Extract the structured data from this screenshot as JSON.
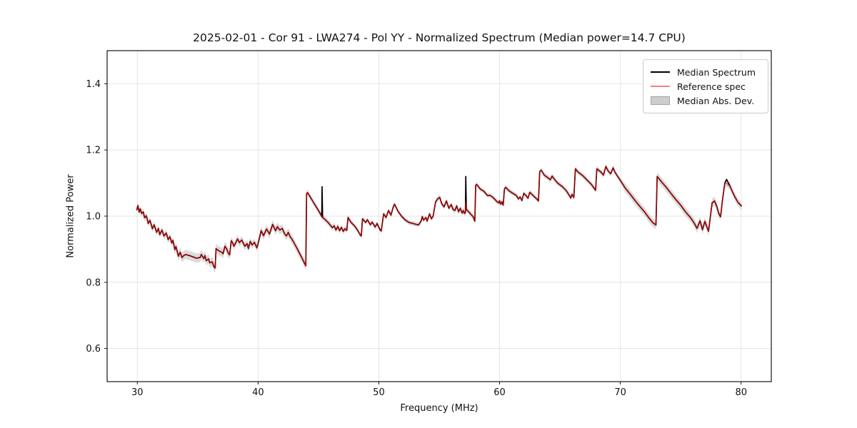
{
  "chart_data": {
    "type": "line",
    "title": "2025-02-01 - Cor 91 - LWA274 - Pol YY - Normalized Spectrum (Median power=14.7 CPU)",
    "xlabel": "Frequency (MHz)",
    "ylabel": "Normalized Power",
    "xlim": [
      27.5,
      82.5
    ],
    "ylim": [
      0.5,
      1.5
    ],
    "xticks": [
      30,
      40,
      50,
      60,
      70,
      80
    ],
    "yticks": [
      0.6,
      0.8,
      1.0,
      1.2,
      1.4
    ],
    "grid": true,
    "legend_position": "upper right",
    "colors": {
      "median_line": "#000000",
      "reference_line": "#ff0000",
      "reference_opacity": 0.62,
      "band_fill": "#bdbdbd",
      "band_opacity": 0.55,
      "grid": "#e4e4e4",
      "spine": "#000000"
    },
    "legend": [
      {
        "label": "Median Spectrum",
        "type": "line",
        "color": "#000000"
      },
      {
        "label": "Reference spec",
        "type": "line",
        "color": "#f37f7f"
      },
      {
        "label": "Median Abs. Dev.",
        "type": "patch",
        "color": "#cdcdcd"
      }
    ],
    "columns": [
      "freq_mhz",
      "median_power",
      "reference_power_if_different"
    ],
    "points": [
      [
        29.95,
        1.018
      ],
      [
        30.05,
        1.032
      ],
      [
        30.15,
        1.012
      ],
      [
        30.25,
        1.022
      ],
      [
        30.35,
        1.008
      ],
      [
        30.5,
        1.013
      ],
      [
        30.6,
        0.995
      ],
      [
        30.75,
        1.001
      ],
      [
        30.9,
        0.978
      ],
      [
        31.05,
        0.987
      ],
      [
        31.25,
        0.962
      ],
      [
        31.4,
        0.974
      ],
      [
        31.6,
        0.951
      ],
      [
        31.75,
        0.963
      ],
      [
        31.85,
        0.944
      ],
      [
        32.05,
        0.958
      ],
      [
        32.2,
        0.94
      ],
      [
        32.4,
        0.949
      ],
      [
        32.55,
        0.929
      ],
      [
        32.7,
        0.938
      ],
      [
        32.85,
        0.919
      ],
      [
        32.95,
        0.927
      ],
      [
        33.1,
        0.899
      ],
      [
        33.2,
        0.908
      ],
      [
        33.4,
        0.879
      ],
      [
        33.55,
        0.891
      ],
      [
        33.7,
        0.875
      ],
      [
        33.85,
        0.881
      ],
      [
        34.0,
        0.884
      ],
      [
        34.3,
        0.881
      ],
      [
        34.6,
        0.877
      ],
      [
        34.9,
        0.873
      ],
      [
        35.2,
        0.875
      ],
      [
        35.3,
        0.884
      ],
      [
        35.5,
        0.872
      ],
      [
        35.6,
        0.881
      ],
      [
        35.7,
        0.865
      ],
      [
        35.9,
        0.871
      ],
      [
        36.0,
        0.859
      ],
      [
        36.2,
        0.862
      ],
      [
        36.35,
        0.847
      ],
      [
        36.45,
        0.843
      ],
      [
        36.52,
        0.902
      ],
      [
        36.65,
        0.898
      ],
      [
        36.8,
        0.894
      ],
      [
        37.0,
        0.891
      ],
      [
        37.1,
        0.886
      ],
      [
        37.25,
        0.909
      ],
      [
        37.4,
        0.901
      ],
      [
        37.55,
        0.887
      ],
      [
        37.65,
        0.883
      ],
      [
        37.78,
        0.926
      ],
      [
        37.9,
        0.919
      ],
      [
        38.0,
        0.909
      ],
      [
        38.1,
        0.916
      ],
      [
        38.3,
        0.931
      ],
      [
        38.45,
        0.92
      ],
      [
        38.65,
        0.928
      ],
      [
        38.9,
        0.909
      ],
      [
        39.1,
        0.917
      ],
      [
        39.2,
        0.902
      ],
      [
        39.35,
        0.924
      ],
      [
        39.5,
        0.913
      ],
      [
        39.7,
        0.921
      ],
      [
        39.9,
        0.904
      ],
      [
        40.1,
        0.932
      ],
      [
        40.25,
        0.956
      ],
      [
        40.45,
        0.941
      ],
      [
        40.7,
        0.961
      ],
      [
        40.95,
        0.946
      ],
      [
        41.2,
        0.975
      ],
      [
        41.45,
        0.956
      ],
      [
        41.6,
        0.968
      ],
      [
        41.8,
        0.958
      ],
      [
        42.0,
        0.963
      ],
      [
        42.2,
        0.946
      ],
      [
        42.35,
        0.94
      ],
      [
        42.5,
        0.951
      ],
      [
        42.65,
        0.938
      ],
      [
        42.8,
        0.931
      ],
      [
        43.2,
        0.904
      ],
      [
        43.6,
        0.876
      ],
      [
        43.95,
        0.85
      ],
      [
        44.02,
        1.068
      ],
      [
        44.1,
        1.071
      ],
      [
        44.4,
        1.053
      ],
      [
        44.7,
        1.035
      ],
      [
        45.0,
        1.017
      ],
      [
        45.2,
        1.004
      ],
      [
        45.27,
        0.999
      ],
      [
        45.3,
        1.089,
        0.998
      ],
      [
        45.34,
        0.996
      ],
      [
        45.45,
        0.993
      ],
      [
        45.6,
        0.988
      ],
      [
        45.8,
        0.981
      ],
      [
        46.0,
        0.972
      ],
      [
        46.15,
        0.965
      ],
      [
        46.3,
        0.971
      ],
      [
        46.45,
        0.958
      ],
      [
        46.6,
        0.969
      ],
      [
        46.75,
        0.956
      ],
      [
        46.9,
        0.966
      ],
      [
        47.05,
        0.954
      ],
      [
        47.2,
        0.962
      ],
      [
        47.35,
        0.957
      ],
      [
        47.45,
        0.996
      ],
      [
        47.7,
        0.981
      ],
      [
        48.0,
        0.97
      ],
      [
        48.2,
        0.96
      ],
      [
        48.45,
        0.944
      ],
      [
        48.55,
        0.94
      ],
      [
        48.65,
        0.992
      ],
      [
        48.9,
        0.981
      ],
      [
        49.05,
        0.989
      ],
      [
        49.3,
        0.974
      ],
      [
        49.45,
        0.982
      ],
      [
        49.7,
        0.967
      ],
      [
        49.85,
        0.978
      ],
      [
        50.1,
        0.959
      ],
      [
        50.2,
        0.955
      ],
      [
        50.4,
        1.007
      ],
      [
        50.6,
        0.996
      ],
      [
        50.8,
        1.017
      ],
      [
        51.0,
        1.003
      ],
      [
        51.2,
        1.028
      ],
      [
        51.3,
        1.036
      ],
      [
        51.6,
        1.014
      ],
      [
        51.9,
        0.999
      ],
      [
        52.2,
        0.988
      ],
      [
        52.5,
        0.981
      ],
      [
        52.8,
        0.978
      ],
      [
        53.1,
        0.975
      ],
      [
        53.3,
        0.974
      ],
      [
        53.5,
        0.985
      ],
      [
        53.6,
        0.999
      ],
      [
        53.7,
        0.988
      ],
      [
        53.9,
        0.996
      ],
      [
        54.0,
        0.985
      ],
      [
        54.2,
        1.007
      ],
      [
        54.35,
        0.992
      ],
      [
        54.5,
        1.0
      ],
      [
        54.7,
        1.043
      ],
      [
        54.9,
        1.053
      ],
      [
        55.05,
        1.057
      ],
      [
        55.2,
        1.038
      ],
      [
        55.4,
        1.028
      ],
      [
        55.6,
        1.046
      ],
      [
        55.8,
        1.024
      ],
      [
        56.0,
        1.035
      ],
      [
        56.15,
        1.02
      ],
      [
        56.3,
        1.017
      ],
      [
        56.45,
        1.031
      ],
      [
        56.6,
        1.013
      ],
      [
        56.75,
        1.024
      ],
      [
        56.9,
        1.009
      ],
      [
        57.0,
        1.017
      ],
      [
        57.1,
        1.008
      ],
      [
        57.17,
        1.011
      ],
      [
        57.2,
        1.12,
        1.042
      ],
      [
        57.25,
        1.02
      ],
      [
        57.3,
        1.018
      ],
      [
        57.45,
        1.013
      ],
      [
        57.6,
        1.006
      ],
      [
        57.8,
        0.999
      ],
      [
        57.95,
        0.985
      ],
      [
        58.02,
        1.093
      ],
      [
        58.1,
        1.096
      ],
      [
        58.4,
        1.082
      ],
      [
        58.7,
        1.075
      ],
      [
        59.0,
        1.062
      ],
      [
        59.2,
        1.063
      ],
      [
        59.4,
        1.058
      ],
      [
        59.6,
        1.051
      ],
      [
        59.8,
        1.043
      ],
      [
        59.95,
        1.04
      ],
      [
        60.0,
        1.047
      ],
      [
        60.1,
        1.036
      ],
      [
        60.2,
        1.043
      ],
      [
        60.3,
        1.033
      ],
      [
        60.4,
        1.082
      ],
      [
        60.5,
        1.087
      ],
      [
        60.8,
        1.076
      ],
      [
        61.1,
        1.069
      ],
      [
        61.4,
        1.062
      ],
      [
        61.55,
        1.052
      ],
      [
        61.7,
        1.058
      ],
      [
        61.85,
        1.047
      ],
      [
        62.0,
        1.069
      ],
      [
        62.2,
        1.062
      ],
      [
        62.35,
        1.054
      ],
      [
        62.5,
        1.072
      ],
      [
        62.7,
        1.065
      ],
      [
        62.9,
        1.058
      ],
      [
        63.1,
        1.051
      ],
      [
        63.22,
        1.046
      ],
      [
        63.32,
        1.135
      ],
      [
        63.45,
        1.139
      ],
      [
        63.7,
        1.124
      ],
      [
        64.0,
        1.116
      ],
      [
        64.2,
        1.11
      ],
      [
        64.35,
        1.121
      ],
      [
        64.55,
        1.111
      ],
      [
        64.8,
        1.1
      ],
      [
        65.2,
        1.089
      ],
      [
        65.5,
        1.078
      ],
      [
        65.7,
        1.067
      ],
      [
        65.9,
        1.055
      ],
      [
        66.0,
        1.066
      ],
      [
        66.15,
        1.056
      ],
      [
        66.28,
        1.143
      ],
      [
        66.5,
        1.133
      ],
      [
        66.9,
        1.122
      ],
      [
        67.3,
        1.107
      ],
      [
        67.6,
        1.096
      ],
      [
        67.8,
        1.086
      ],
      [
        67.95,
        1.078
      ],
      [
        68.05,
        1.143
      ],
      [
        68.4,
        1.133
      ],
      [
        68.6,
        1.124
      ],
      [
        68.8,
        1.15
      ],
      [
        69.0,
        1.136
      ],
      [
        69.2,
        1.128
      ],
      [
        69.4,
        1.146
      ],
      [
        69.55,
        1.133
      ],
      [
        70.0,
        1.108
      ],
      [
        70.4,
        1.085
      ],
      [
        70.8,
        1.067
      ],
      [
        71.2,
        1.048
      ],
      [
        71.6,
        1.03
      ],
      [
        72.0,
        1.013
      ],
      [
        72.4,
        0.993
      ],
      [
        72.7,
        0.98
      ],
      [
        72.95,
        0.973
      ],
      [
        73.05,
        1.12
      ],
      [
        73.4,
        1.104
      ],
      [
        73.8,
        1.087
      ],
      [
        74.2,
        1.068
      ],
      [
        74.6,
        1.05
      ],
      [
        75.0,
        1.033
      ],
      [
        75.4,
        1.013
      ],
      [
        75.8,
        0.996
      ],
      [
        76.1,
        0.98
      ],
      [
        76.35,
        0.963
      ],
      [
        76.6,
        0.986
      ],
      [
        76.8,
        0.959
      ],
      [
        77.0,
        0.984
      ],
      [
        77.3,
        0.954
      ],
      [
        77.6,
        1.04
      ],
      [
        77.8,
        1.046
      ],
      [
        78.0,
        1.028
      ],
      [
        78.15,
        1.008
      ],
      [
        78.3,
        0.998
      ],
      [
        78.45,
        1.046
      ],
      [
        78.65,
        1.1
      ],
      [
        78.8,
        1.111,
        1.099
      ],
      [
        79.1,
        1.089
      ],
      [
        79.3,
        1.072
      ],
      [
        79.5,
        1.057
      ],
      [
        79.75,
        1.041
      ],
      [
        80.05,
        1.03
      ]
    ],
    "mad_halfwidth_regions": [
      [
        29.9,
        33.0,
        0.01
      ],
      [
        33.0,
        37.6,
        0.014
      ],
      [
        37.6,
        40.0,
        0.011
      ],
      [
        40.0,
        44.0,
        0.013
      ],
      [
        44.0,
        47.5,
        0.009
      ],
      [
        47.5,
        54.5,
        0.007
      ],
      [
        54.5,
        58.0,
        0.008
      ],
      [
        58.0,
        63.3,
        0.007
      ],
      [
        63.3,
        70.0,
        0.008
      ],
      [
        70.0,
        78.0,
        0.013
      ],
      [
        78.0,
        80.2,
        0.011
      ]
    ]
  }
}
